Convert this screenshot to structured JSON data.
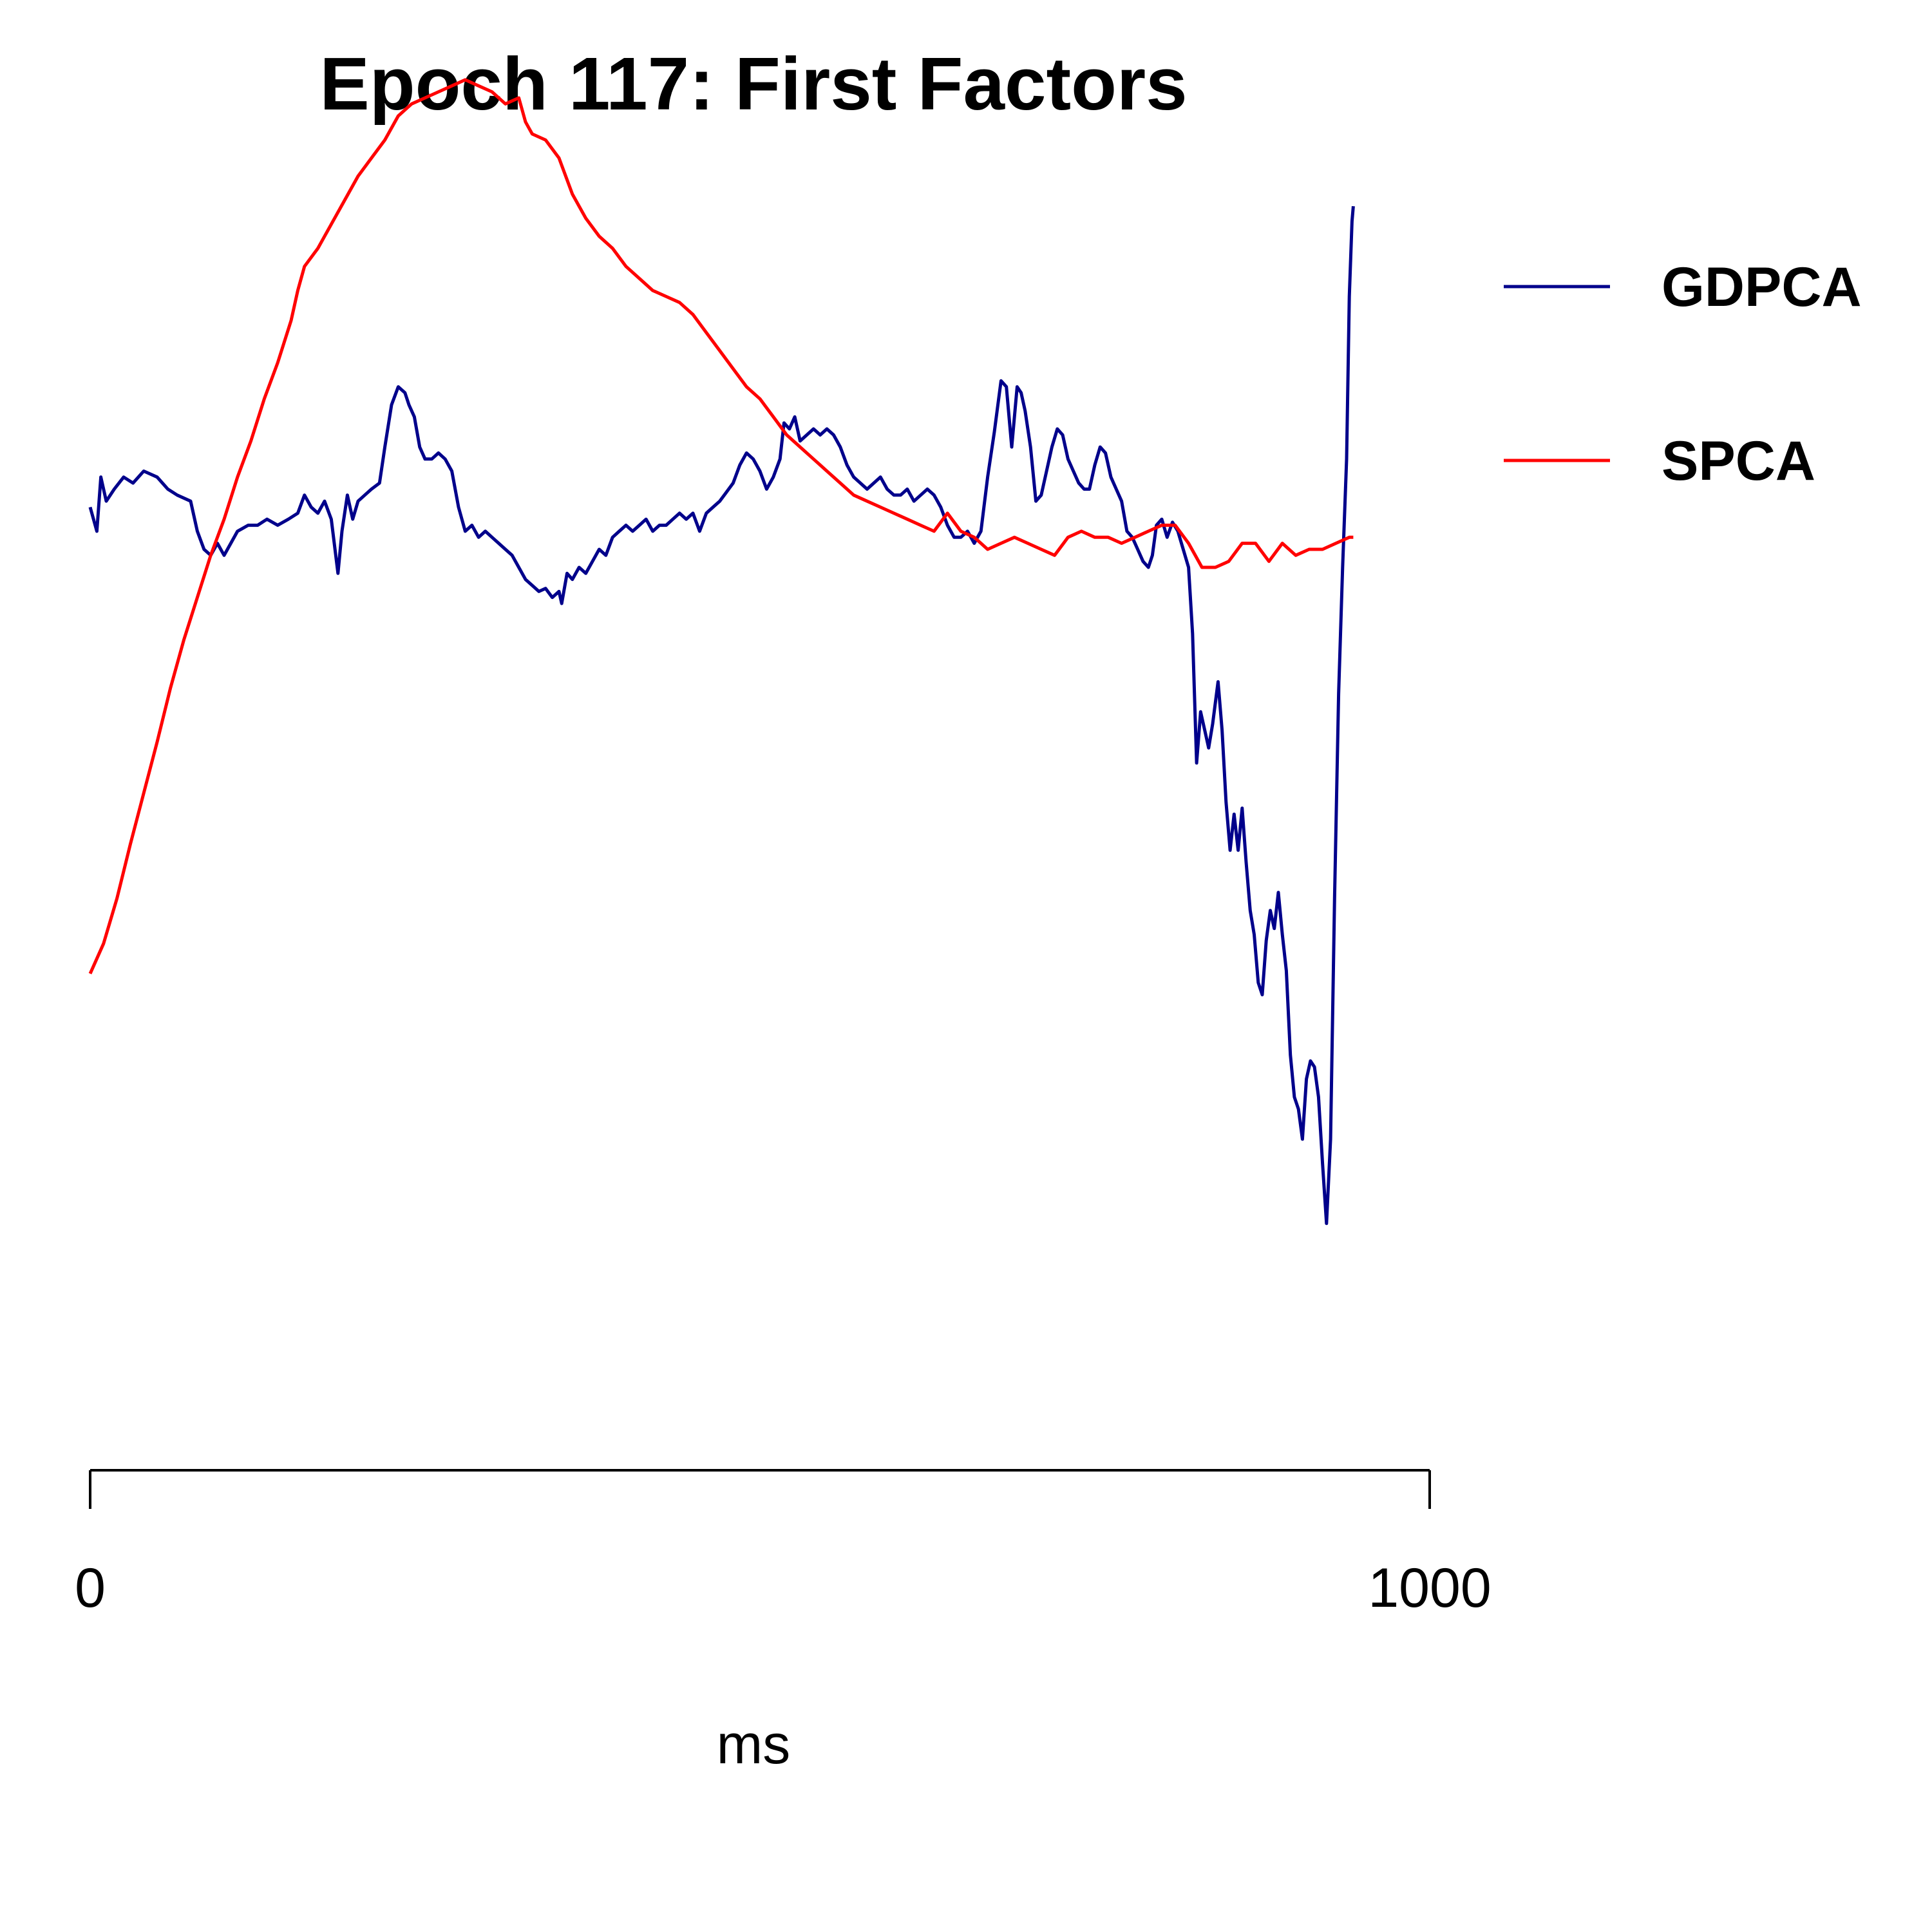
{
  "chart_data": {
    "type": "line",
    "title": "Epoch 117: First Factors",
    "xlabel": "ms",
    "ylabel": "",
    "xlim": [
      0,
      1000
    ],
    "ylim": [
      -3.2,
      1.3
    ],
    "x_ticks": [
      0,
      1000
    ],
    "x_tick_labels": [
      "0",
      "1000"
    ],
    "y_axis_shown": false,
    "grid": false,
    "legend_position": "right",
    "series": [
      {
        "name": "GDPCA",
        "color": "#00008B",
        "points": [
          [
            0,
            0
          ],
          [
            5,
            -0.08
          ],
          [
            8,
            0.1
          ],
          [
            12,
            0.02
          ],
          [
            18,
            0.06
          ],
          [
            25,
            0.1
          ],
          [
            32,
            0.08
          ],
          [
            40,
            0.12
          ],
          [
            50,
            0.1
          ],
          [
            58,
            0.06
          ],
          [
            65,
            0.04
          ],
          [
            75,
            0.02
          ],
          [
            80,
            -0.08
          ],
          [
            85,
            -0.14
          ],
          [
            90,
            -0.16
          ],
          [
            95,
            -0.12
          ],
          [
            100,
            -0.16
          ],
          [
            105,
            -0.12
          ],
          [
            110,
            -0.08
          ],
          [
            118,
            -0.06
          ],
          [
            125,
            -0.06
          ],
          [
            132,
            -0.04
          ],
          [
            140,
            -0.06
          ],
          [
            148,
            -0.04
          ],
          [
            155,
            -0.02
          ],
          [
            160,
            0.04
          ],
          [
            165,
            0.0
          ],
          [
            170,
            -0.02
          ],
          [
            175,
            0.02
          ],
          [
            180,
            -0.04
          ],
          [
            185,
            -0.22
          ],
          [
            188,
            -0.08
          ],
          [
            192,
            0.04
          ],
          [
            196,
            -0.04
          ],
          [
            200,
            0.02
          ],
          [
            205,
            0.04
          ],
          [
            210,
            0.06
          ],
          [
            216,
            0.08
          ],
          [
            220,
            0.2
          ],
          [
            225,
            0.34
          ],
          [
            230,
            0.4
          ],
          [
            235,
            0.38
          ],
          [
            238,
            0.34
          ],
          [
            242,
            0.3
          ],
          [
            246,
            0.2
          ],
          [
            250,
            0.16
          ],
          [
            255,
            0.16
          ],
          [
            260,
            0.18
          ],
          [
            265,
            0.16
          ],
          [
            270,
            0.12
          ],
          [
            275,
            0.0
          ],
          [
            280,
            -0.08
          ],
          [
            285,
            -0.06
          ],
          [
            290,
            -0.1
          ],
          [
            295,
            -0.08
          ],
          [
            300,
            -0.1
          ],
          [
            305,
            -0.12
          ],
          [
            310,
            -0.14
          ],
          [
            315,
            -0.16
          ],
          [
            320,
            -0.2
          ],
          [
            325,
            -0.24
          ],
          [
            330,
            -0.26
          ],
          [
            335,
            -0.28
          ],
          [
            340,
            -0.27
          ],
          [
            345,
            -0.3
          ],
          [
            350,
            -0.28
          ],
          [
            352,
            -0.32
          ],
          [
            356,
            -0.22
          ],
          [
            360,
            -0.24
          ],
          [
            365,
            -0.2
          ],
          [
            370,
            -0.22
          ],
          [
            375,
            -0.18
          ],
          [
            380,
            -0.14
          ],
          [
            385,
            -0.16
          ],
          [
            390,
            -0.1
          ],
          [
            395,
            -0.08
          ],
          [
            400,
            -0.06
          ],
          [
            405,
            -0.08
          ],
          [
            410,
            -0.06
          ],
          [
            415,
            -0.04
          ],
          [
            420,
            -0.08
          ],
          [
            425,
            -0.06
          ],
          [
            430,
            -0.06
          ],
          [
            435,
            -0.04
          ],
          [
            440,
            -0.02
          ],
          [
            445,
            -0.04
          ],
          [
            450,
            -0.02
          ],
          [
            455,
            -0.08
          ],
          [
            460,
            -0.02
          ],
          [
            465,
            0.0
          ],
          [
            470,
            0.02
          ],
          [
            475,
            0.05
          ],
          [
            480,
            0.08
          ],
          [
            485,
            0.14
          ],
          [
            490,
            0.18
          ],
          [
            495,
            0.16
          ],
          [
            500,
            0.12
          ],
          [
            505,
            0.06
          ],
          [
            510,
            0.1
          ],
          [
            515,
            0.16
          ],
          [
            518,
            0.28
          ],
          [
            522,
            0.26
          ],
          [
            526,
            0.3
          ],
          [
            530,
            0.22
          ],
          [
            535,
            0.24
          ],
          [
            540,
            0.26
          ],
          [
            545,
            0.24
          ],
          [
            550,
            0.26
          ],
          [
            555,
            0.24
          ],
          [
            560,
            0.2
          ],
          [
            565,
            0.14
          ],
          [
            570,
            0.1
          ],
          [
            575,
            0.08
          ],
          [
            580,
            0.06
          ],
          [
            585,
            0.08
          ],
          [
            590,
            0.1
          ],
          [
            595,
            0.06
          ],
          [
            600,
            0.04
          ],
          [
            605,
            0.04
          ],
          [
            610,
            0.06
          ],
          [
            615,
            0.02
          ],
          [
            620,
            0.04
          ],
          [
            625,
            0.06
          ],
          [
            630,
            0.04
          ],
          [
            635,
            0.0
          ],
          [
            640,
            -0.06
          ],
          [
            645,
            -0.1
          ],
          [
            650,
            -0.1
          ],
          [
            655,
            -0.08
          ],
          [
            660,
            -0.12
          ],
          [
            665,
            -0.08
          ],
          [
            670,
            0.1
          ],
          [
            675,
            0.25
          ],
          [
            680,
            0.42
          ],
          [
            684,
            0.4
          ],
          [
            688,
            0.2
          ],
          [
            692,
            0.4
          ],
          [
            695,
            0.38
          ],
          [
            698,
            0.32
          ],
          [
            702,
            0.2
          ],
          [
            706,
            0.02
          ],
          [
            710,
            0.04
          ],
          [
            714,
            0.12
          ],
          [
            718,
            0.2
          ],
          [
            722,
            0.26
          ],
          [
            726,
            0.24
          ],
          [
            730,
            0.16
          ],
          [
            734,
            0.12
          ],
          [
            738,
            0.08
          ],
          [
            742,
            0.06
          ],
          [
            746,
            0.06
          ],
          [
            750,
            0.14
          ],
          [
            754,
            0.2
          ],
          [
            758,
            0.18
          ],
          [
            762,
            0.1
          ],
          [
            766,
            0.06
          ],
          [
            770,
            0.02
          ],
          [
            774,
            -0.08
          ],
          [
            778,
            -0.1
          ],
          [
            782,
            -0.14
          ],
          [
            786,
            -0.18
          ],
          [
            790,
            -0.2
          ],
          [
            793,
            -0.16
          ],
          [
            796,
            -0.06
          ],
          [
            800,
            -0.04
          ],
          [
            804,
            -0.1
          ],
          [
            808,
            -0.05
          ],
          [
            812,
            -0.08
          ],
          [
            816,
            -0.14
          ],
          [
            820,
            -0.2
          ],
          [
            823,
            -0.42
          ],
          [
            826,
            -0.85
          ],
          [
            829,
            -0.68
          ],
          [
            832,
            -0.74
          ],
          [
            835,
            -0.8
          ],
          [
            838,
            -0.72
          ],
          [
            842,
            -0.58
          ],
          [
            845,
            -0.74
          ],
          [
            848,
            -0.98
          ],
          [
            851,
            -1.14
          ],
          [
            854,
            -1.02
          ],
          [
            857,
            -1.14
          ],
          [
            860,
            -1.0
          ],
          [
            863,
            -1.18
          ],
          [
            866,
            -1.34
          ],
          [
            869,
            -1.42
          ],
          [
            872,
            -1.58
          ],
          [
            875,
            -1.62
          ],
          [
            878,
            -1.44
          ],
          [
            881,
            -1.34
          ],
          [
            884,
            -1.4
          ],
          [
            887,
            -1.28
          ],
          [
            890,
            -1.42
          ],
          [
            893,
            -1.54
          ],
          [
            896,
            -1.82
          ],
          [
            899,
            -1.96
          ],
          [
            902,
            -2.0
          ],
          [
            905,
            -2.1
          ],
          [
            908,
            -1.9
          ],
          [
            911,
            -1.84
          ],
          [
            914,
            -1.86
          ],
          [
            917,
            -1.96
          ],
          [
            920,
            -2.18
          ],
          [
            923,
            -2.38
          ],
          [
            926,
            -2.1
          ],
          [
            929,
            -1.3
          ],
          [
            932,
            -0.62
          ],
          [
            935,
            -0.2
          ],
          [
            938,
            0.16
          ],
          [
            940,
            0.7
          ],
          [
            942,
            0.95
          ],
          [
            943,
            1.0
          ]
        ]
      },
      {
        "name": "SPCA",
        "color": "#FF0000",
        "points": [
          [
            0,
            -1.55
          ],
          [
            10,
            -1.45
          ],
          [
            20,
            -1.3
          ],
          [
            30,
            -1.12
          ],
          [
            40,
            -0.95
          ],
          [
            50,
            -0.78
          ],
          [
            60,
            -0.6
          ],
          [
            70,
            -0.44
          ],
          [
            80,
            -0.3
          ],
          [
            90,
            -0.16
          ],
          [
            100,
            -0.04
          ],
          [
            110,
            0.1
          ],
          [
            120,
            0.22
          ],
          [
            130,
            0.36
          ],
          [
            140,
            0.48
          ],
          [
            150,
            0.62
          ],
          [
            155,
            0.72
          ],
          [
            160,
            0.8
          ],
          [
            170,
            0.86
          ],
          [
            180,
            0.94
          ],
          [
            190,
            1.02
          ],
          [
            200,
            1.1
          ],
          [
            210,
            1.16
          ],
          [
            220,
            1.22
          ],
          [
            230,
            1.3
          ],
          [
            240,
            1.34
          ],
          [
            250,
            1.36
          ],
          [
            260,
            1.38
          ],
          [
            270,
            1.4
          ],
          [
            280,
            1.42
          ],
          [
            290,
            1.4
          ],
          [
            300,
            1.38
          ],
          [
            310,
            1.34
          ],
          [
            320,
            1.36
          ],
          [
            325,
            1.28
          ],
          [
            330,
            1.24
          ],
          [
            340,
            1.22
          ],
          [
            350,
            1.16
          ],
          [
            360,
            1.04
          ],
          [
            370,
            0.96
          ],
          [
            380,
            0.9
          ],
          [
            390,
            0.86
          ],
          [
            400,
            0.8
          ],
          [
            410,
            0.76
          ],
          [
            420,
            0.72
          ],
          [
            430,
            0.7
          ],
          [
            440,
            0.68
          ],
          [
            450,
            0.64
          ],
          [
            460,
            0.58
          ],
          [
            470,
            0.52
          ],
          [
            480,
            0.46
          ],
          [
            490,
            0.4
          ],
          [
            500,
            0.36
          ],
          [
            510,
            0.3
          ],
          [
            520,
            0.24
          ],
          [
            530,
            0.2
          ],
          [
            540,
            0.16
          ],
          [
            550,
            0.12
          ],
          [
            560,
            0.08
          ],
          [
            570,
            0.04
          ],
          [
            580,
            0.02
          ],
          [
            590,
            0.0
          ],
          [
            600,
            -0.02
          ],
          [
            610,
            -0.04
          ],
          [
            620,
            -0.06
          ],
          [
            630,
            -0.08
          ],
          [
            640,
            -0.02
          ],
          [
            650,
            -0.08
          ],
          [
            660,
            -0.1
          ],
          [
            670,
            -0.14
          ],
          [
            680,
            -0.12
          ],
          [
            690,
            -0.1
          ],
          [
            700,
            -0.12
          ],
          [
            710,
            -0.14
          ],
          [
            720,
            -0.16
          ],
          [
            730,
            -0.1
          ],
          [
            740,
            -0.08
          ],
          [
            750,
            -0.1
          ],
          [
            760,
            -0.1
          ],
          [
            770,
            -0.12
          ],
          [
            780,
            -0.1
          ],
          [
            790,
            -0.08
          ],
          [
            800,
            -0.06
          ],
          [
            810,
            -0.06
          ],
          [
            820,
            -0.12
          ],
          [
            830,
            -0.2
          ],
          [
            840,
            -0.2
          ],
          [
            850,
            -0.18
          ],
          [
            860,
            -0.12
          ],
          [
            870,
            -0.12
          ],
          [
            880,
            -0.18
          ],
          [
            890,
            -0.12
          ],
          [
            900,
            -0.16
          ],
          [
            910,
            -0.14
          ],
          [
            920,
            -0.14
          ],
          [
            930,
            -0.12
          ],
          [
            940,
            -0.1
          ],
          [
            943,
            -0.1
          ]
        ]
      }
    ]
  }
}
